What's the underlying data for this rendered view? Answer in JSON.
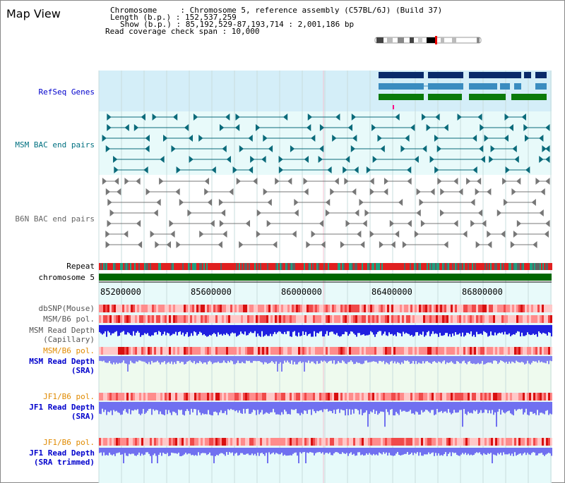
{
  "header": {
    "title": "Map View",
    "line1": "Chromosome     : Chromosome 5, reference assembly (C57BL/6J) (Build 37)",
    "line2": "Length (b.p.) : 152,537,259",
    "line3": "Show (b.p.) : 85,192,529-87,193,714 : 2,001,186 bp",
    "line4": "Read coverage check span : 10,000"
  },
  "tracks": {
    "refseq": "RefSeq Genes",
    "msm_bac": "MSM BAC end pairs",
    "b6n_bac": "B6N BAC end pairs",
    "repeat": "Repeat",
    "chromosome": "chromosome 5",
    "dbsnp": "dbSNP(Mouse)",
    "msm_b6_pol": "MSM/B6 pol.",
    "msm_depth_cap": "MSM Read Depth",
    "msm_depth_cap_sub": "(Capillary)",
    "msm_b6_pol2": "MSM/B6 pol.",
    "msm_depth_sra": "MSM Read Depth",
    "msm_depth_sra_sub": "(SRA)",
    "jf1_b6_pol": "JF1/B6 pol.",
    "jf1_depth_sra": "JF1 Read Depth",
    "jf1_depth_sra_sub": "(SRA)",
    "jf1_b6_pol2": "JF1/B6 pol.",
    "jf1_depth_trim": "JF1 Read Depth",
    "jf1_depth_trim_sub": "(SRA trimmed)"
  },
  "axis": {
    "ticks": [
      "85200000",
      "85600000",
      "86000000",
      "86400000",
      "86800000"
    ]
  },
  "colors": {
    "navy": "#000080",
    "teal": "#006666",
    "gray": "#666666",
    "orange": "#e08a00",
    "depth": "#2020e0",
    "refseq_bg": "#d4eef8",
    "msm_bg": "#e8fafa",
    "chrom": "#006600"
  }
}
